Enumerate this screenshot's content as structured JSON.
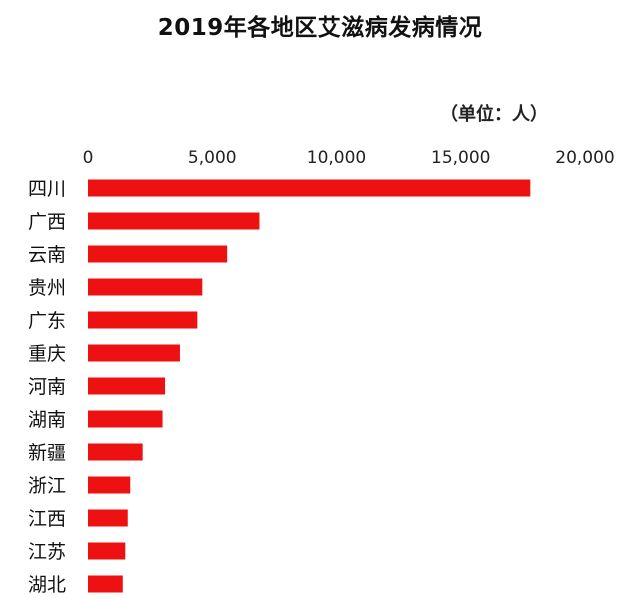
{
  "chart_data": {
    "type": "bar",
    "orientation": "horizontal",
    "title": "2019年各地区艾滋病发病情况",
    "unit_label": "（单位：人）",
    "categories": [
      "四川",
      "广西",
      "云南",
      "贵州",
      "广东",
      "重庆",
      "河南",
      "湖南",
      "新疆",
      "浙江",
      "江西",
      "江苏",
      "湖北"
    ],
    "values": [
      17800,
      6900,
      5600,
      4600,
      4400,
      3700,
      3100,
      3000,
      2200,
      1700,
      1600,
      1500,
      1400
    ],
    "xlim": [
      0,
      20000
    ],
    "x_ticks": [
      0,
      5000,
      10000,
      15000,
      20000
    ],
    "x_tick_labels": [
      "0",
      "5,000",
      "10,000",
      "15,000",
      "20,000"
    ],
    "x_axis_position": "top",
    "grid": false,
    "bar_color": "#ee1111"
  }
}
